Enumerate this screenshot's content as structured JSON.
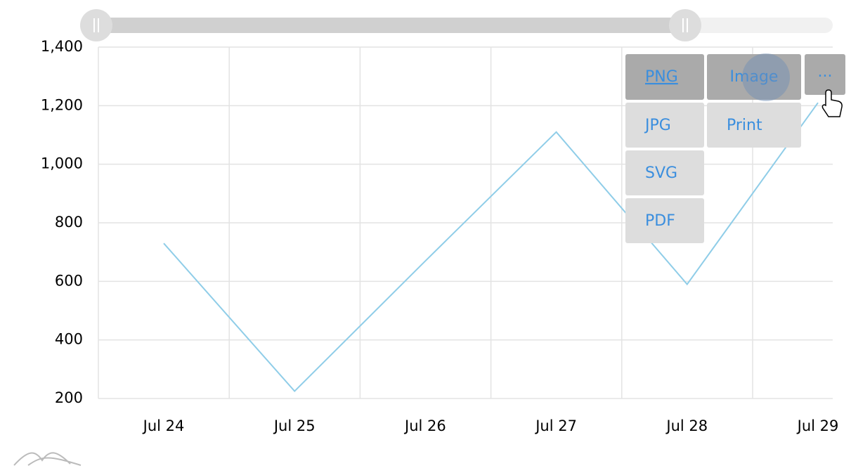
{
  "chart_data": {
    "type": "line",
    "categories": [
      "Jul 24",
      "Jul 25",
      "Jul 26",
      "Jul 27",
      "Jul 28",
      "Jul 29"
    ],
    "series": [
      {
        "name": null,
        "color": "#8fcde8",
        "values": [
          730,
          225,
          670,
          1110,
          590,
          1210
        ]
      }
    ],
    "ylim": [
      200,
      1400
    ],
    "yticks": [
      200,
      400,
      600,
      800,
      {
        "value": 1000,
        "label": "1,000"
      },
      {
        "value": 1200,
        "label": "1,200"
      },
      {
        "value": 1400,
        "label": "1,400"
      }
    ],
    "grid": true
  },
  "export_menu": {
    "items": [
      "PNG",
      "Image",
      "...",
      "JPG",
      "Print",
      "SVG",
      "PDF"
    ]
  }
}
